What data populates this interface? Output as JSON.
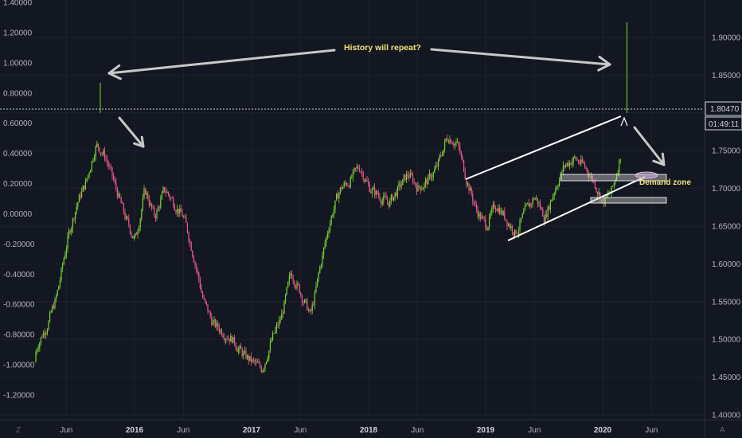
{
  "chart_data": {
    "type": "candlestick",
    "x_ticks": [
      {
        "label": "Jun",
        "date": "2015-06",
        "bold": false
      },
      {
        "label": "2016",
        "date": "2016-01",
        "bold": true
      },
      {
        "label": "Jun",
        "date": "2016-06",
        "bold": false
      },
      {
        "label": "2017",
        "date": "2017-01",
        "bold": true
      },
      {
        "label": "Jun",
        "date": "2017-06",
        "bold": false
      },
      {
        "label": "2018",
        "date": "2018-01",
        "bold": true
      },
      {
        "label": "Jun",
        "date": "2018-06",
        "bold": false
      },
      {
        "label": "2019",
        "date": "2019-01",
        "bold": true
      },
      {
        "label": "Jun",
        "date": "2019-06",
        "bold": false
      },
      {
        "label": "2020",
        "date": "2020-01",
        "bold": true
      },
      {
        "label": "Jun",
        "date": "2020-06",
        "bold": false
      }
    ],
    "left_axis": {
      "ylim": [
        -1.4,
        1.4
      ],
      "ticks": [
        "1.40000",
        "1.20000",
        "1.00000",
        "0.80000",
        "0.60000",
        "0.40000",
        "0.20000",
        "0.00000",
        "-0.20000",
        "-0.40000",
        "-0.60000",
        "-0.80000",
        "-1.00000",
        "-1.20000"
      ]
    },
    "right_axis": {
      "ylim": [
        1.4,
        1.95
      ],
      "ticks": [
        "1.90000",
        "1.85000",
        "1.80000",
        "1.75000",
        "1.70000",
        "1.65000",
        "1.60000",
        "1.55000",
        "1.50000",
        "1.45000",
        "1.40000"
      ]
    },
    "last_price": "1.80470",
    "countdown": "01:49:11",
    "price_path": [
      [
        "2015-02",
        1.47
      ],
      [
        "2015-04",
        1.52
      ],
      [
        "2015-05",
        1.56
      ],
      [
        "2015-06",
        1.63
      ],
      [
        "2015-07",
        1.68
      ],
      [
        "2015-08",
        1.71
      ],
      [
        "2015-09",
        1.76
      ],
      [
        "2015-10",
        1.74
      ],
      [
        "2015-11",
        1.7
      ],
      [
        "2015-12",
        1.66
      ],
      [
        "2016-01",
        1.63
      ],
      [
        "2016-02",
        1.7
      ],
      [
        "2016-03",
        1.66
      ],
      [
        "2016-04",
        1.7
      ],
      [
        "2016-05",
        1.68
      ],
      [
        "2016-06",
        1.66
      ],
      [
        "2016-07",
        1.61
      ],
      [
        "2016-08",
        1.55
      ],
      [
        "2016-09",
        1.52
      ],
      [
        "2016-10",
        1.51
      ],
      [
        "2016-11",
        1.5
      ],
      [
        "2016-12",
        1.48
      ],
      [
        "2017-01",
        1.47
      ],
      [
        "2017-02",
        1.46
      ],
      [
        "2017-03",
        1.5
      ],
      [
        "2017-04",
        1.53
      ],
      [
        "2017-05",
        1.59
      ],
      [
        "2017-06",
        1.56
      ],
      [
        "2017-07",
        1.53
      ],
      [
        "2017-08",
        1.6
      ],
      [
        "2017-09",
        1.66
      ],
      [
        "2017-10",
        1.7
      ],
      [
        "2017-11",
        1.71
      ],
      [
        "2017-12",
        1.73
      ],
      [
        "2018-01",
        1.7
      ],
      [
        "2018-02",
        1.69
      ],
      [
        "2018-03",
        1.68
      ],
      [
        "2018-04",
        1.7
      ],
      [
        "2018-05",
        1.72
      ],
      [
        "2018-06",
        1.7
      ],
      [
        "2018-07",
        1.71
      ],
      [
        "2018-08",
        1.73
      ],
      [
        "2018-09",
        1.77
      ],
      [
        "2018-10",
        1.76
      ],
      [
        "2018-11",
        1.71
      ],
      [
        "2018-12",
        1.67
      ],
      [
        "2019-01",
        1.65
      ],
      [
        "2019-02",
        1.68
      ],
      [
        "2019-03",
        1.66
      ],
      [
        "2019-04",
        1.64
      ],
      [
        "2019-05",
        1.67
      ],
      [
        "2019-06",
        1.69
      ],
      [
        "2019-07",
        1.66
      ],
      [
        "2019-08",
        1.7
      ],
      [
        "2019-09",
        1.73
      ],
      [
        "2019-10",
        1.74
      ],
      [
        "2019-11",
        1.73
      ],
      [
        "2019-12",
        1.71
      ],
      [
        "2020-01",
        1.68
      ],
      [
        "2020-02",
        1.7
      ],
      [
        "2020-03",
        1.76
      ]
    ],
    "spikes": [
      {
        "date": "2015-09",
        "high": 1.84
      },
      {
        "date": "2020-03",
        "high": 1.92
      }
    ],
    "annotations": [
      {
        "text": "History will repeat?"
      },
      {
        "text": "Demand zone"
      }
    ],
    "arrows": [
      {
        "from": [
          "2015-10",
          1.825
        ],
        "to": [
          "2018-08",
          1.85
        ]
      },
      {
        "from": [
          "2018-08",
          1.85
        ],
        "to": [
          "2020-03",
          1.83
        ]
      },
      {
        "from": [
          "2015-10",
          1.77
        ],
        "to": [
          "2015-12",
          1.74
        ]
      },
      {
        "from": [
          "2020-03",
          1.75
        ],
        "to": [
          "2020-06",
          1.73
        ]
      }
    ],
    "channel_lines": [
      {
        "from": [
          "2018-11",
          1.705
        ],
        "to": [
          "2020-03",
          1.772
        ]
      },
      {
        "from": [
          "2019-03",
          1.628
        ],
        "to": [
          "2020-03",
          1.71
        ]
      }
    ],
    "zones": [
      {
        "from": "2019-09",
        "to": "2020-05",
        "top": 1.708,
        "bottom": 1.7
      },
      {
        "from": "2019-12",
        "to": "2020-05",
        "top": 1.675,
        "bottom": 1.668
      }
    ],
    "colors": {
      "background": "#131722",
      "up": "#7cd62e",
      "down": "#f05a8c",
      "text": "#b2b5be",
      "annotation": "#f2e479",
      "arrow": "#c8c8c8"
    },
    "corner_icons": {
      "left": "Z",
      "right": "A"
    }
  }
}
